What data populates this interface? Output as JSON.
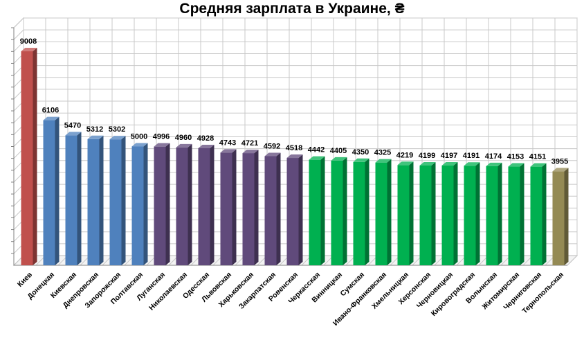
{
  "chart_data": {
    "type": "bar",
    "title": "Средняя зарплата в Украине, ₴",
    "xlabel": "",
    "ylabel": "",
    "ylim": [
      0,
      10000
    ],
    "grid": true,
    "categories": [
      "Киев",
      "Донецкая",
      "Киевская",
      "Днепровская",
      "Запорожская",
      "Полтавская",
      "Луганская",
      "Николаевская",
      "Одесская",
      "Львовская",
      "Харьковская",
      "Закарпатская",
      "Ровенская",
      "Черкасская",
      "Винницкая",
      "Сумская",
      "Ивано-Франковская",
      "Хмельницкая",
      "Херсонская",
      "Черновицкая",
      "Кировоградская",
      "Волынская",
      "Житомирская",
      "Черниговская",
      "Тернопольская"
    ],
    "values": [
      9008,
      6106,
      5470,
      5312,
      5302,
      5000,
      4996,
      4960,
      4928,
      4743,
      4721,
      4592,
      4518,
      4442,
      4405,
      4350,
      4325,
      4219,
      4199,
      4197,
      4191,
      4174,
      4153,
      4151,
      3955
    ],
    "bar_colors": [
      "#c0504d",
      "#4f81bd",
      "#4f81bd",
      "#4f81bd",
      "#4f81bd",
      "#4f81bd",
      "#604a7b",
      "#604a7b",
      "#604a7b",
      "#604a7b",
      "#604a7b",
      "#604a7b",
      "#604a7b",
      "#00b050",
      "#00b050",
      "#00b050",
      "#00b050",
      "#00b050",
      "#00b050",
      "#00b050",
      "#00b050",
      "#00b050",
      "#00b050",
      "#00b050",
      "#948a54"
    ]
  }
}
